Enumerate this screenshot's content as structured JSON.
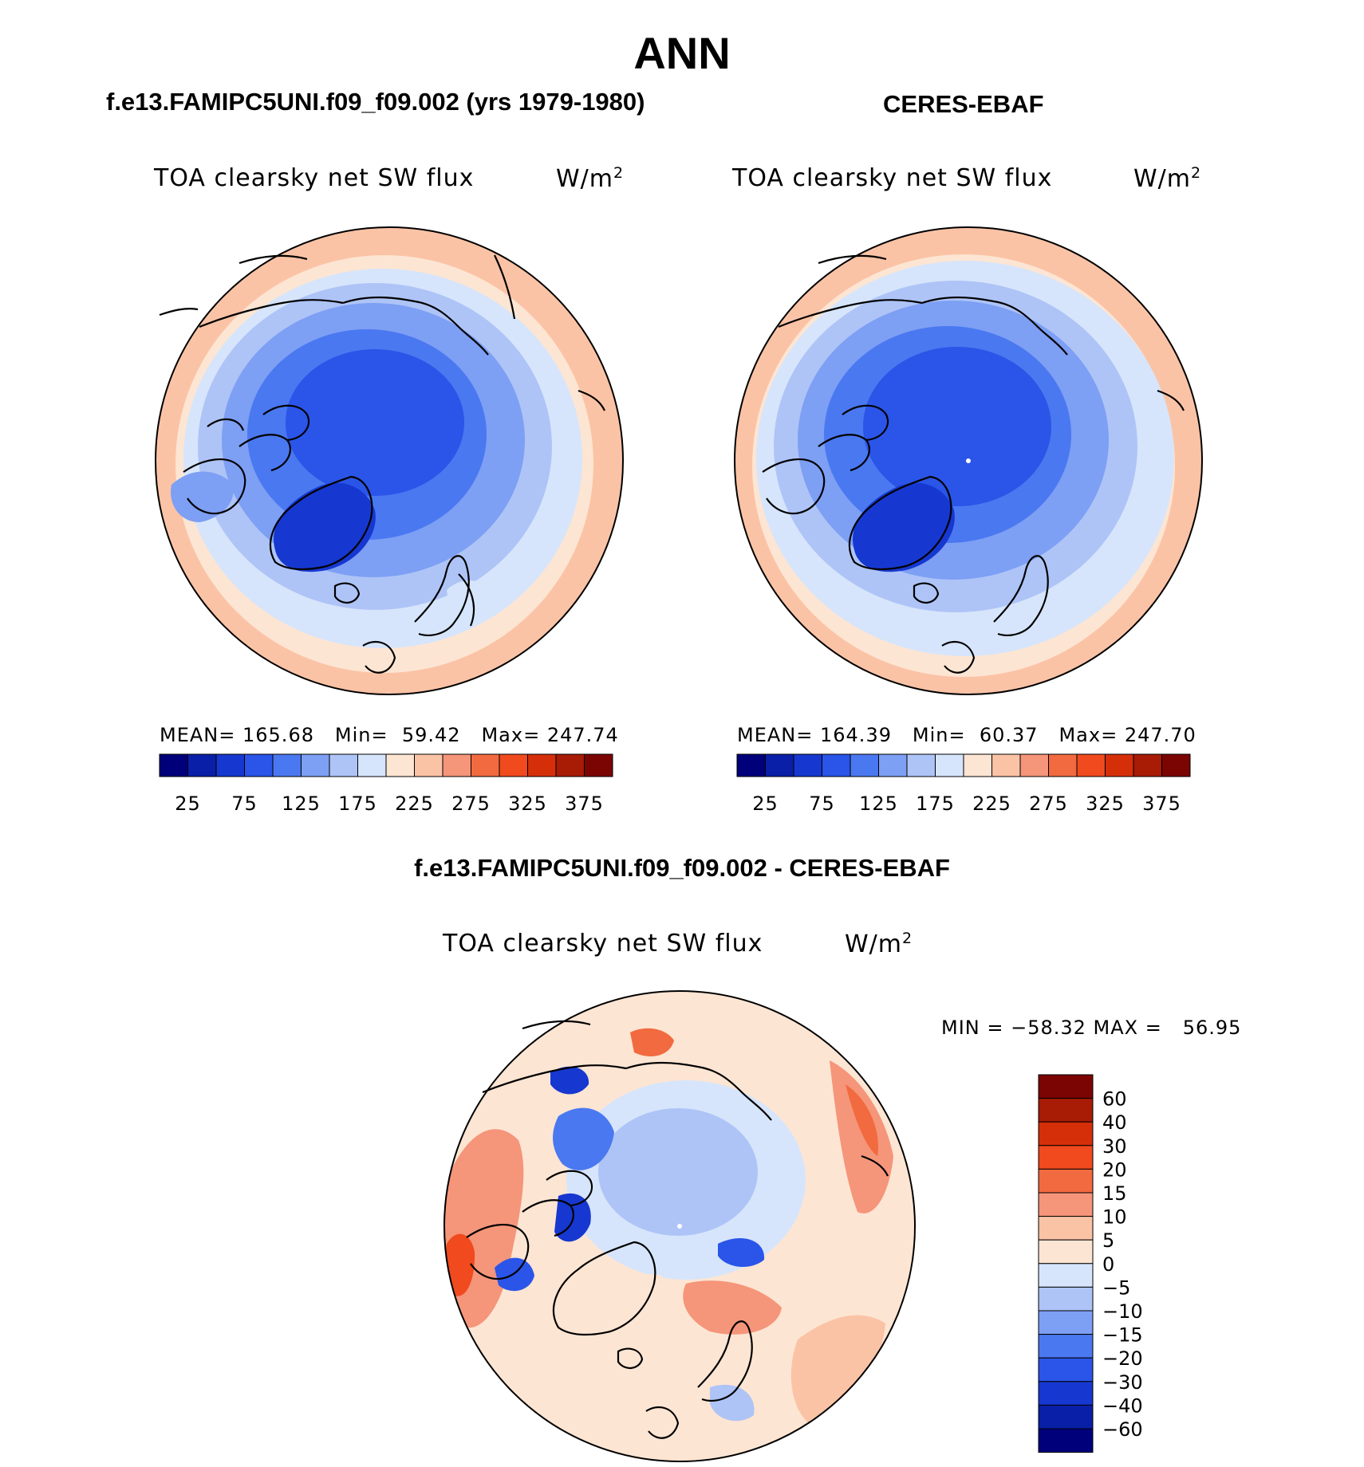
{
  "figure": {
    "season": "ANN"
  },
  "panels": [
    {
      "title": "f.e13.FAMIPC5UNI.f09_f09.002 (yrs 1979-1980)",
      "variable": "TOA clearsky net SW flux",
      "units": "W/m",
      "units_sup": "2",
      "mean_label": "MEAN=",
      "mean": "165.68",
      "min_label": "Min=",
      "min": "59.42",
      "max_label": "Max=",
      "max": "247.74"
    },
    {
      "title": "CERES-EBAF",
      "variable": "TOA clearsky net SW flux",
      "units": "W/m",
      "units_sup": "2",
      "mean_label": "MEAN=",
      "mean": "164.39",
      "min_label": "Min=",
      "min": "60.37",
      "max_label": "Max=",
      "max": "247.70"
    },
    {
      "title": "f.e13.FAMIPC5UNI.f09_f09.002 - CERES-EBAF",
      "variable": "TOA clearsky net SW flux",
      "units": "W/m",
      "units_sup": "2",
      "minmax_text": "MIN = −58.32 MAX =   56.95"
    }
  ],
  "colorbar_main": {
    "tick_labels": [
      "25",
      "75",
      "125",
      "175",
      "225",
      "275",
      "325",
      "375"
    ],
    "colors": [
      "#00007a",
      "#0a1fa8",
      "#1638d0",
      "#2a55e8",
      "#4a78f0",
      "#7d9ff4",
      "#aec4f7",
      "#d6e5fb",
      "#fde5d3",
      "#fbc3a6",
      "#f5957a",
      "#f26a3f",
      "#f04a1e",
      "#d52f0a",
      "#a81b05",
      "#7a0503"
    ]
  },
  "colorbar_diff": {
    "tick_labels": [
      "60",
      "40",
      "30",
      "20",
      "15",
      "10",
      "5",
      "0",
      "−5",
      "−10",
      "−15",
      "−20",
      "−30",
      "−40",
      "−60"
    ],
    "colors": [
      "#7a0503",
      "#a81b05",
      "#d52f0a",
      "#f04a1e",
      "#f26a3f",
      "#f5957a",
      "#fbc3a6",
      "#fde5d3",
      "#d6e5fb",
      "#aec4f7",
      "#7d9ff4",
      "#4a78f0",
      "#2a55e8",
      "#1638d0",
      "#0a1fa8",
      "#00007a"
    ]
  },
  "chart_data": [
    {
      "type": "heatmap",
      "title": "f.e13.FAMIPC5UNI.f09_f09.002 (yrs 1979-1980)",
      "variable": "TOA clearsky net SW flux",
      "units": "W/m2",
      "projection": "north polar stereographic",
      "stats": {
        "mean": 165.68,
        "min": 59.42,
        "max": 247.74
      },
      "contour_levels": [
        25,
        50,
        75,
        100,
        125,
        150,
        175,
        200,
        225,
        250,
        275,
        300,
        325,
        350,
        375
      ],
      "colorbar_ticks": [
        25,
        75,
        125,
        175,
        225,
        275,
        325,
        375
      ]
    },
    {
      "type": "heatmap",
      "title": "CERES-EBAF",
      "variable": "TOA clearsky net SW flux",
      "units": "W/m2",
      "projection": "north polar stereographic",
      "stats": {
        "mean": 164.39,
        "min": 60.37,
        "max": 247.7
      },
      "contour_levels": [
        25,
        50,
        75,
        100,
        125,
        150,
        175,
        200,
        225,
        250,
        275,
        300,
        325,
        350,
        375
      ],
      "colorbar_ticks": [
        25,
        75,
        125,
        175,
        225,
        275,
        325,
        375
      ]
    },
    {
      "type": "heatmap",
      "title": "f.e13.FAMIPC5UNI.f09_f09.002 - CERES-EBAF",
      "variable": "TOA clearsky net SW flux",
      "units": "W/m2",
      "projection": "north polar stereographic",
      "stats": {
        "min": -58.32,
        "max": 56.95
      },
      "contour_levels": [
        -60,
        -40,
        -30,
        -20,
        -15,
        -10,
        -5,
        0,
        5,
        10,
        15,
        20,
        30,
        40,
        60
      ],
      "colorbar_ticks": [
        60,
        40,
        30,
        20,
        15,
        10,
        5,
        0,
        -5,
        -10,
        -15,
        -20,
        -30,
        -40,
        -60
      ]
    }
  ]
}
